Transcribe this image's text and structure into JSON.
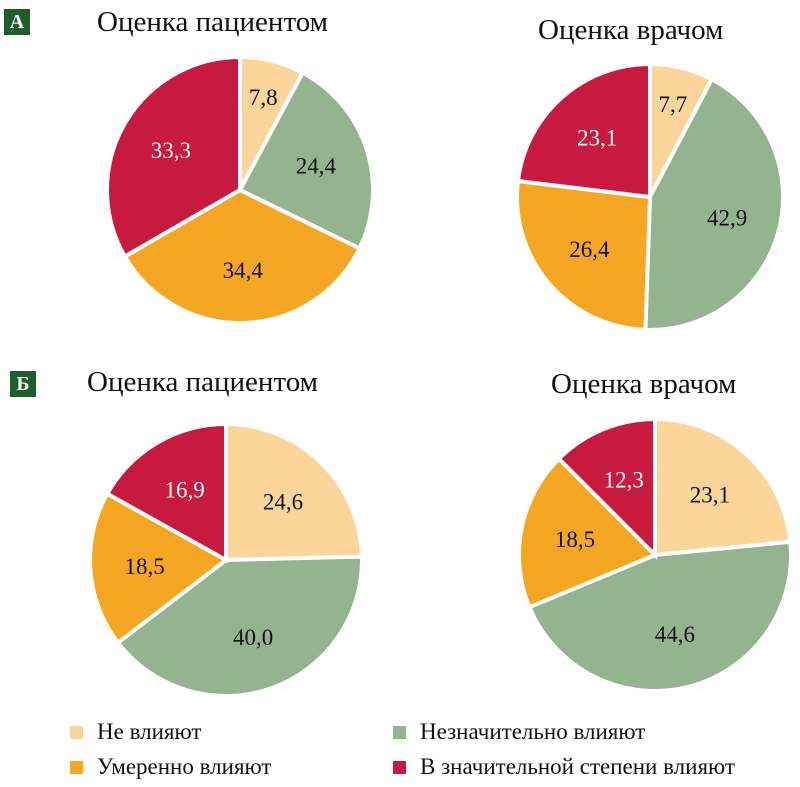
{
  "colors": {
    "none": "#fcd59b",
    "slight": "#94b38f",
    "moderate": "#f5a623",
    "strong": "#c8193f",
    "badge": "#1d5e2a"
  },
  "panels": [
    {
      "label": "А",
      "titles": [
        "Оценка пациентом",
        "Оценка врачом"
      ]
    },
    {
      "label": "Б",
      "titles": [
        "Оценка пациентом",
        "Оценка врачом"
      ]
    }
  ],
  "legend": [
    "Не влияют",
    "Незначительно влияют",
    "Умеренно влияют",
    "В значительной степени влияют"
  ],
  "chart_data": [
    {
      "type": "pie",
      "panel": "А",
      "title": "Оценка пациентом",
      "categories": [
        "Не влияют",
        "Незначительно влияют",
        "Умеренно влияют",
        "В значительной степени влияют"
      ],
      "values": [
        7.8,
        24.4,
        34.4,
        33.3
      ],
      "labels": [
        "7,8",
        "24,4",
        "34,4",
        "33,3"
      ]
    },
    {
      "type": "pie",
      "panel": "А",
      "title": "Оценка врачом",
      "categories": [
        "Не влияют",
        "Незначительно влияют",
        "Умеренно влияют",
        "В значительной степени влияют"
      ],
      "values": [
        7.7,
        42.9,
        26.4,
        23.1
      ],
      "labels": [
        "7,7",
        "42,9",
        "26,4",
        "23,1"
      ]
    },
    {
      "type": "pie",
      "panel": "Б",
      "title": "Оценка пациентом",
      "categories": [
        "Не влияют",
        "Незначительно влияют",
        "Умеренно влияют",
        "В значительной степени влияют"
      ],
      "values": [
        24.6,
        40.0,
        18.5,
        16.9
      ],
      "labels": [
        "24,6",
        "40,0",
        "18,5",
        "16,9"
      ]
    },
    {
      "type": "pie",
      "panel": "Б",
      "title": "Оценка врачом",
      "categories": [
        "Не влияют",
        "Незначительно влияют",
        "Умеренно влияют",
        "В значительной степени влияют"
      ],
      "values": [
        23.1,
        44.6,
        18.5,
        12.3
      ],
      "labels": [
        "23,1",
        "44,6",
        "18,5",
        "12,3"
      ]
    }
  ]
}
